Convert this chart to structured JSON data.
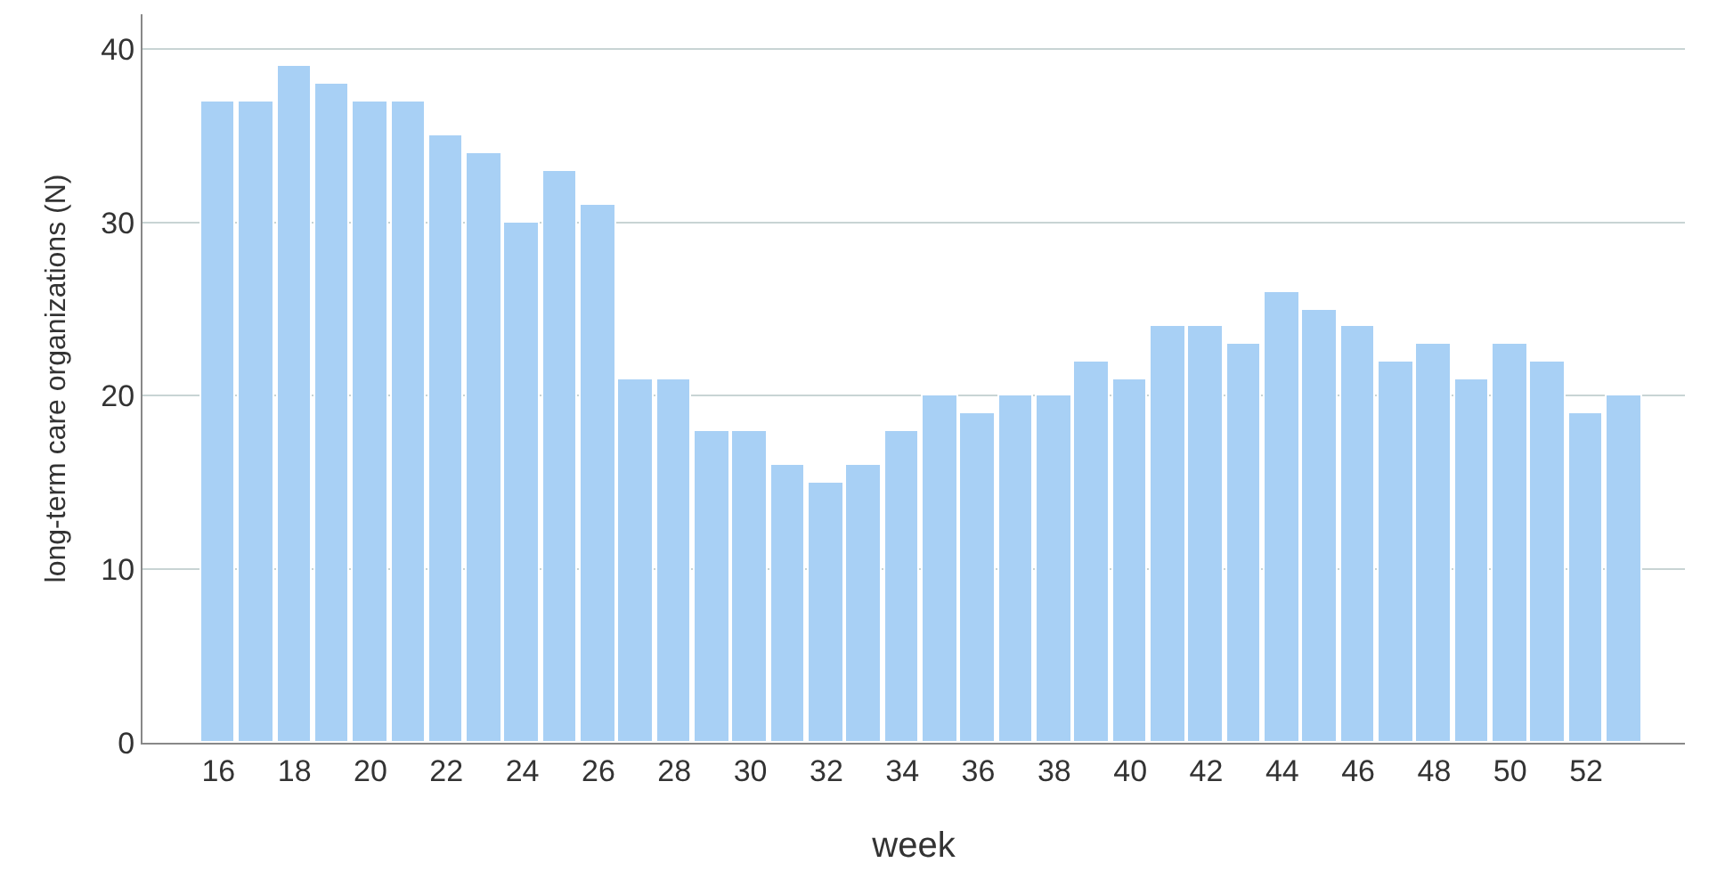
{
  "chart_data": {
    "type": "bar",
    "xlabel": "week",
    "ylabel": "long-term care organizations (N)",
    "categories": [
      "16",
      null,
      "18",
      null,
      "20",
      null,
      "22",
      null,
      "24",
      null,
      "26",
      null,
      "28",
      null,
      "30",
      null,
      "32",
      null,
      "34",
      null,
      "36",
      null,
      "38",
      null,
      "40",
      null,
      "42",
      null,
      "44",
      null,
      "46",
      null,
      "48",
      null,
      "50",
      null,
      "52",
      null
    ],
    "values": [
      37,
      37,
      39,
      38,
      37,
      37,
      35,
      34,
      30,
      33,
      31,
      21,
      21,
      18,
      18,
      16,
      15,
      16,
      18,
      20,
      19,
      20,
      20,
      22,
      21,
      24,
      24,
      23,
      26,
      25,
      24,
      22,
      23,
      21,
      23,
      22,
      19,
      20
    ],
    "color": "#a8d0f5",
    "ylim": [
      0,
      42
    ],
    "yticks": [
      0,
      10,
      20,
      30,
      40
    ],
    "grid": "y",
    "legend": false
  }
}
